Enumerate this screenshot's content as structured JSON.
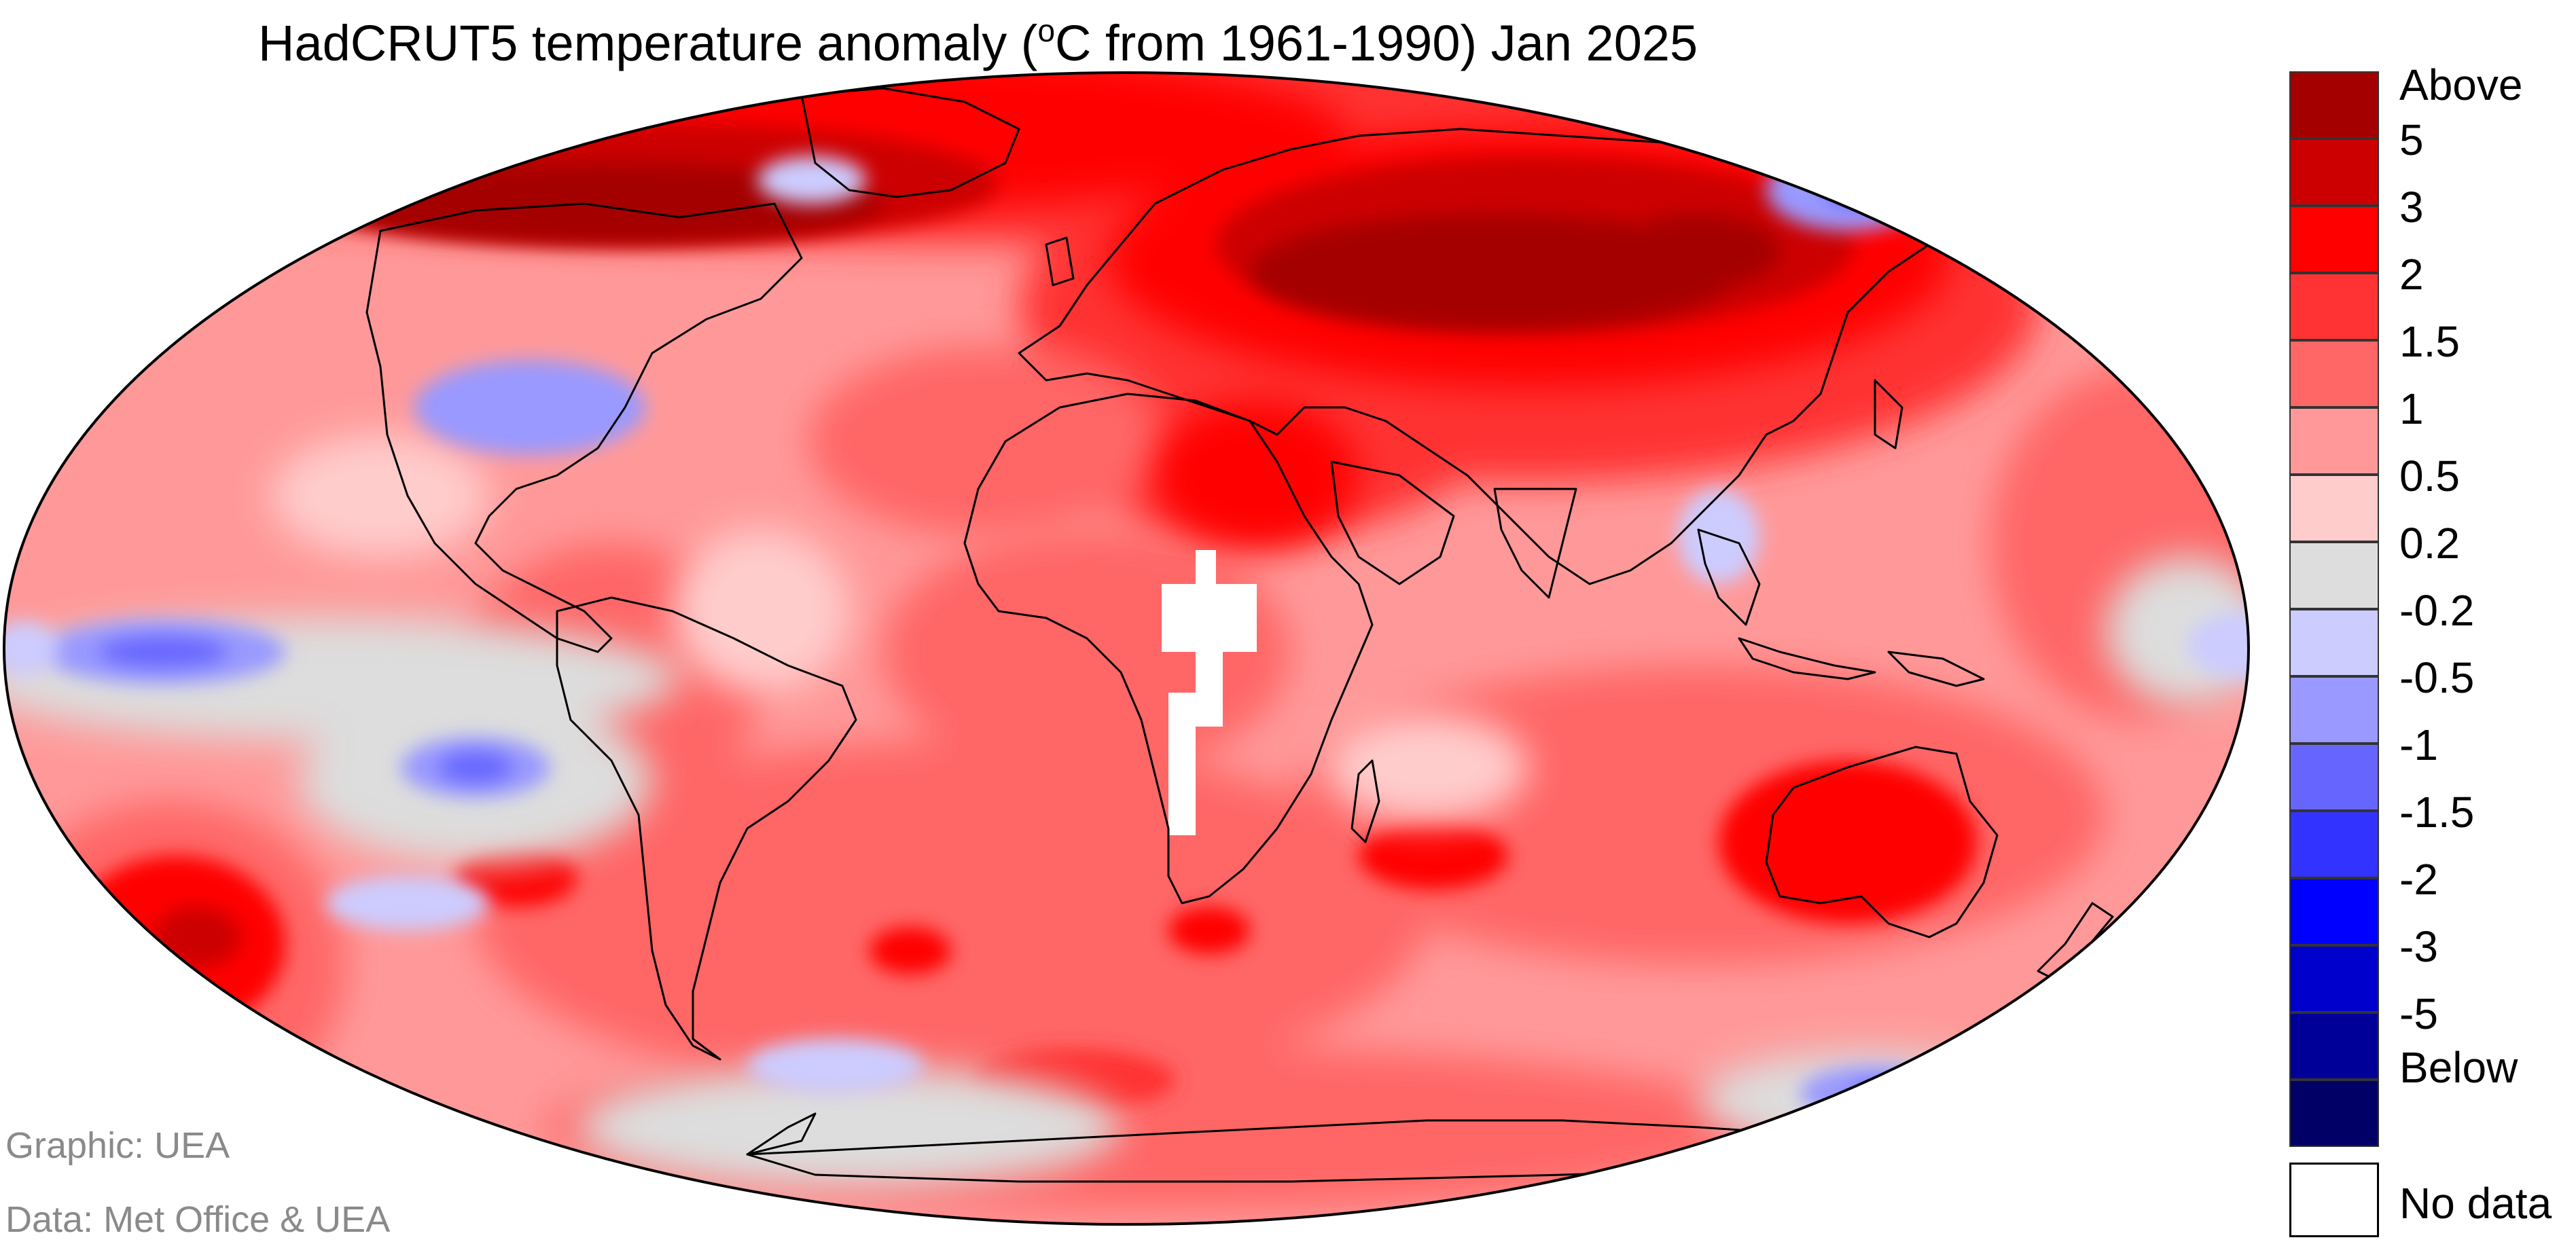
{
  "title": {
    "prefix": "HadCRUT5 temperature anomaly (",
    "degree": "o",
    "suffix": "C from 1961-1990) Jan 2025"
  },
  "legend": {
    "labels": [
      "Above",
      "5",
      "3",
      "2",
      "1.5",
      "1",
      "0.5",
      "0.2",
      "-0.2",
      "-0.5",
      "-1",
      "-1.5",
      "-2",
      "-3",
      "-5",
      "Below"
    ],
    "colors": [
      "#a50000",
      "#cc0000",
      "#ff0000",
      "#ff3333",
      "#ff6666",
      "#ff9999",
      "#ffcccc",
      "#dddddd",
      "#ccccff",
      "#9999ff",
      "#6666ff",
      "#3333ff",
      "#0000ff",
      "#0000cc",
      "#000099",
      "#000066"
    ],
    "no_data_label": "No data",
    "no_data_color": "#ffffff"
  },
  "credits": {
    "graphic": "Graphic: UEA",
    "data": "Data: Met Office & UEA"
  }
}
